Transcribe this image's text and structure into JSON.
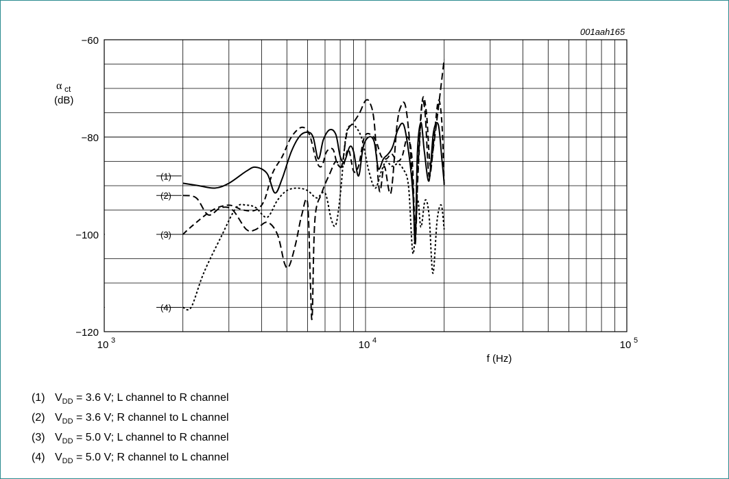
{
  "figure_ref": "001aah165",
  "chart_data": {
    "type": "line",
    "xscale": "log",
    "xlim": [
      1000,
      100000
    ],
    "ylim": [
      -120,
      -60
    ],
    "xlabel": "f (Hz)",
    "ylabel_symbol": "α",
    "ylabel_subscript": "ct",
    "ylabel_unit": "(dB)",
    "x_ticks": [
      {
        "base": "10",
        "exp": "3"
      },
      {
        "base": "10",
        "exp": "4"
      },
      {
        "base": "10",
        "exp": "5"
      }
    ],
    "y_ticks": [
      "−60",
      "−80",
      "−100",
      "−120"
    ],
    "grid": true,
    "series": [
      {
        "name": "(1)",
        "style": "solid",
        "points": [
          [
            2000,
            -89.5
          ],
          [
            2300,
            -90
          ],
          [
            2650,
            -90.5
          ],
          [
            3000,
            -89.5
          ],
          [
            3500,
            -87
          ],
          [
            3800,
            -86.2
          ],
          [
            4200,
            -87.5
          ],
          [
            4500,
            -91.5
          ],
          [
            4800,
            -88.5
          ],
          [
            5200,
            -83
          ],
          [
            5600,
            -79.8
          ],
          [
            6000,
            -79
          ],
          [
            6300,
            -80
          ],
          [
            6600,
            -84.5
          ],
          [
            6900,
            -80.5
          ],
          [
            7300,
            -78.5
          ],
          [
            7700,
            -79.5
          ],
          [
            8000,
            -84
          ],
          [
            8300,
            -85
          ],
          [
            8700,
            -82
          ],
          [
            9000,
            -83
          ],
          [
            9400,
            -88
          ],
          [
            9800,
            -82
          ],
          [
            10300,
            -80
          ],
          [
            10800,
            -81
          ],
          [
            11200,
            -86.5
          ],
          [
            11700,
            -84.5
          ],
          [
            12200,
            -83.5
          ],
          [
            12700,
            -82
          ],
          [
            13300,
            -78.5
          ],
          [
            14000,
            -77.5
          ],
          [
            14700,
            -84
          ],
          [
            15200,
            -92
          ],
          [
            15500,
            -101.5
          ],
          [
            15800,
            -83
          ],
          [
            16300,
            -77
          ],
          [
            16800,
            -83
          ],
          [
            17500,
            -89
          ],
          [
            18200,
            -79
          ],
          [
            19000,
            -77.5
          ],
          [
            19600,
            -84.5
          ],
          [
            20000,
            -89.5
          ]
        ]
      },
      {
        "name": "(2)",
        "style": "dashed",
        "points": [
          [
            2000,
            -92
          ],
          [
            2250,
            -92.5
          ],
          [
            2500,
            -96
          ],
          [
            2800,
            -94.5
          ],
          [
            3100,
            -95
          ],
          [
            3500,
            -99
          ],
          [
            3800,
            -99
          ],
          [
            4200,
            -97.5
          ],
          [
            4600,
            -100
          ],
          [
            4900,
            -106
          ],
          [
            5100,
            -106.5
          ],
          [
            5400,
            -102
          ],
          [
            5700,
            -96
          ],
          [
            6000,
            -93.5
          ],
          [
            6150,
            -110
          ],
          [
            6250,
            -117
          ],
          [
            6400,
            -97
          ],
          [
            6800,
            -91.5
          ],
          [
            7300,
            -87.5
          ],
          [
            7700,
            -85
          ],
          [
            8100,
            -86
          ],
          [
            8500,
            -79
          ],
          [
            9000,
            -77
          ],
          [
            9500,
            -75
          ],
          [
            10000,
            -72.5
          ],
          [
            10400,
            -73
          ],
          [
            10800,
            -77
          ],
          [
            11300,
            -91
          ],
          [
            11800,
            -86
          ],
          [
            12500,
            -91.5
          ],
          [
            13200,
            -77.5
          ],
          [
            13700,
            -73.5
          ],
          [
            14200,
            -73.5
          ],
          [
            14700,
            -80
          ],
          [
            15200,
            -91
          ],
          [
            15500,
            -102
          ],
          [
            15900,
            -86
          ],
          [
            16400,
            -73.5
          ],
          [
            16900,
            -75
          ],
          [
            17500,
            -88
          ],
          [
            18200,
            -82
          ],
          [
            19000,
            -74
          ],
          [
            19500,
            -69
          ],
          [
            20000,
            -64
          ]
        ]
      },
      {
        "name": "(3)",
        "style": "dashed-long",
        "points": [
          [
            2000,
            -100
          ],
          [
            2200,
            -98
          ],
          [
            2600,
            -95
          ],
          [
            3000,
            -94
          ],
          [
            3400,
            -95
          ],
          [
            3800,
            -95
          ],
          [
            4100,
            -93
          ],
          [
            4400,
            -87.5
          ],
          [
            4800,
            -84
          ],
          [
            5200,
            -80
          ],
          [
            5700,
            -78
          ],
          [
            6100,
            -79.5
          ],
          [
            6500,
            -85
          ],
          [
            6800,
            -86
          ],
          [
            7100,
            -83
          ],
          [
            7500,
            -82.5
          ],
          [
            7800,
            -85.5
          ],
          [
            8200,
            -86
          ],
          [
            8600,
            -82.5
          ],
          [
            9000,
            -87
          ],
          [
            9400,
            -86
          ],
          [
            9900,
            -80
          ],
          [
            10500,
            -79.5
          ],
          [
            11000,
            -81
          ],
          [
            11500,
            -84
          ],
          [
            12000,
            -84.5
          ],
          [
            12600,
            -83.5
          ],
          [
            13200,
            -85
          ],
          [
            13800,
            -84
          ],
          [
            14500,
            -80
          ],
          [
            15100,
            -85
          ],
          [
            15500,
            -99
          ],
          [
            15900,
            -87
          ],
          [
            16500,
            -72.5
          ],
          [
            17100,
            -75
          ],
          [
            17700,
            -86
          ],
          [
            18300,
            -80
          ],
          [
            19000,
            -72.5
          ],
          [
            19600,
            -77
          ],
          [
            20000,
            -90
          ]
        ]
      },
      {
        "name": "(4)",
        "style": "dotted",
        "points": [
          [
            2000,
            -115
          ],
          [
            2150,
            -115
          ],
          [
            2400,
            -108
          ],
          [
            2800,
            -100.5
          ],
          [
            3200,
            -94.5
          ],
          [
            3500,
            -94
          ],
          [
            3800,
            -94.5
          ],
          [
            4200,
            -96.5
          ],
          [
            4600,
            -93
          ],
          [
            5000,
            -91
          ],
          [
            5500,
            -90.5
          ],
          [
            6000,
            -91
          ],
          [
            6500,
            -92.5
          ],
          [
            7000,
            -91.5
          ],
          [
            7400,
            -97
          ],
          [
            7700,
            -98
          ],
          [
            8000,
            -92
          ],
          [
            8400,
            -80
          ],
          [
            8800,
            -77.5
          ],
          [
            9200,
            -78
          ],
          [
            9700,
            -80.5
          ],
          [
            10300,
            -87
          ],
          [
            10900,
            -90.5
          ],
          [
            11500,
            -87
          ],
          [
            12000,
            -85
          ],
          [
            12600,
            -86
          ],
          [
            13300,
            -85.5
          ],
          [
            13900,
            -86.5
          ],
          [
            14600,
            -90
          ],
          [
            15200,
            -104
          ],
          [
            15800,
            -93
          ],
          [
            16300,
            -98.5
          ],
          [
            16900,
            -93
          ],
          [
            17500,
            -96
          ],
          [
            18100,
            -108
          ],
          [
            18800,
            -97
          ],
          [
            19500,
            -94
          ],
          [
            20000,
            -99
          ]
        ]
      }
    ],
    "curve_labels": [
      {
        "text": "(1)",
        "y": -88
      },
      {
        "text": "(2)",
        "y": -92
      },
      {
        "text": "(3)",
        "y": -100
      },
      {
        "text": "(4)",
        "y": -115
      }
    ]
  },
  "legend": [
    {
      "num": "(1)",
      "pre": "V",
      "sub": "DD",
      "post": " = 3.6 V; L channel to R channel"
    },
    {
      "num": "(2)",
      "pre": "V",
      "sub": "DD",
      "post": " = 3.6 V; R channel to L channel"
    },
    {
      "num": "(3)",
      "pre": "V",
      "sub": "DD",
      "post": " = 5.0 V; L channel to R channel"
    },
    {
      "num": "(4)",
      "pre": "V",
      "sub": "DD",
      "post": " = 5.0 V; R channel to L channel"
    }
  ]
}
